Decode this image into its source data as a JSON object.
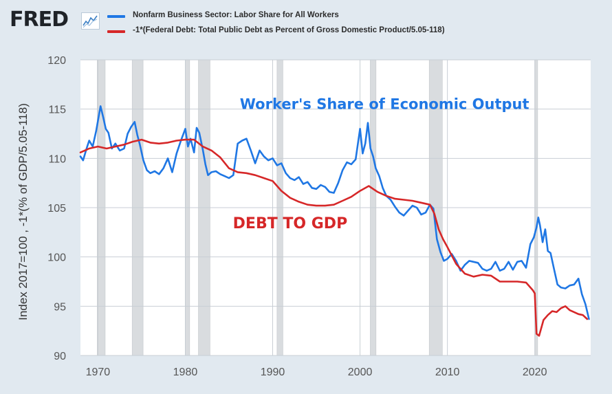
{
  "header": {
    "logo_text": "FRED",
    "logo_icon": "line-chart-icon"
  },
  "colors": {
    "background": "#e1e9f0",
    "plot_area": "#ffffff",
    "grid": "#c8ced4",
    "recession": "#d9dcdf",
    "series_blue": "#1f77e4",
    "series_red": "#d62728",
    "annotation_blue": "#1f77e4",
    "annotation_red": "#d62728"
  },
  "chart_data": {
    "type": "line",
    "ylabel": "Index 2017=100 , -1*(% of GDP/5.05-118)",
    "xlabel": "",
    "xlim": [
      1968.0,
      2026.4
    ],
    "ylim": [
      90,
      120
    ],
    "yticks": [
      90,
      95,
      100,
      105,
      110,
      115,
      120
    ],
    "xticks": [
      1970,
      1980,
      1990,
      2000,
      2010,
      2020
    ],
    "grid": true,
    "legend_position": "top-left",
    "recessions": [
      [
        1969.92,
        1970.83
      ],
      [
        1973.92,
        1975.17
      ],
      [
        1980.0,
        1980.5
      ],
      [
        1981.5,
        1982.83
      ],
      [
        1990.5,
        1991.17
      ],
      [
        2001.17,
        2001.83
      ],
      [
        2007.92,
        2009.42
      ],
      [
        2020.08,
        2020.33
      ]
    ],
    "annotations": [
      {
        "text": "Worker's Share of Economic Output",
        "x": 2002.8,
        "y": 115.0,
        "color": "blue"
      },
      {
        "text": "DEBT TO GDP",
        "x": 1992.0,
        "y": 102.9,
        "color": "red"
      }
    ],
    "series": [
      {
        "name": "Nonfarm Business Sector: Labor Share for All Workers",
        "color": "blue",
        "x": [
          1968.0,
          1968.3,
          1968.7,
          1969.0,
          1969.4,
          1969.8,
          1970.0,
          1970.3,
          1970.6,
          1970.9,
          1971.2,
          1971.6,
          1972.0,
          1972.5,
          1973.0,
          1973.4,
          1973.8,
          1974.2,
          1974.5,
          1974.8,
          1975.2,
          1975.6,
          1976.0,
          1976.5,
          1977.0,
          1977.5,
          1978.0,
          1978.5,
          1979.0,
          1979.5,
          1980.0,
          1980.3,
          1980.6,
          1981.0,
          1981.3,
          1981.6,
          1982.0,
          1982.3,
          1982.6,
          1983.0,
          1983.5,
          1984.0,
          1984.5,
          1985.0,
          1985.5,
          1986.0,
          1986.5,
          1987.0,
          1987.5,
          1988.0,
          1988.5,
          1989.0,
          1989.5,
          1990.0,
          1990.5,
          1991.0,
          1991.5,
          1992.0,
          1992.5,
          1993.0,
          1993.5,
          1994.0,
          1994.5,
          1995.0,
          1995.5,
          1996.0,
          1996.5,
          1997.0,
          1997.5,
          1998.0,
          1998.5,
          1999.0,
          1999.5,
          2000.0,
          2000.3,
          2000.6,
          2000.9,
          2001.2,
          2001.5,
          2001.8,
          2002.2,
          2002.6,
          2003.0,
          2003.5,
          2004.0,
          2004.5,
          2005.0,
          2005.5,
          2006.0,
          2006.5,
          2007.0,
          2007.5,
          2008.0,
          2008.4,
          2008.8,
          2009.2,
          2009.6,
          2010.0,
          2010.5,
          2011.0,
          2011.5,
          2012.0,
          2012.5,
          2013.0,
          2013.5,
          2014.0,
          2014.5,
          2015.0,
          2015.5,
          2016.0,
          2016.5,
          2017.0,
          2017.5,
          2018.0,
          2018.5,
          2019.0,
          2019.5,
          2019.9,
          2020.2,
          2020.4,
          2020.6,
          2020.9,
          2021.2,
          2021.5,
          2021.8,
          2022.2,
          2022.6,
          2023.0,
          2023.5,
          2024.0,
          2024.5,
          2025.0,
          2025.4,
          2025.8,
          2026.2
        ],
        "values": [
          110.2,
          109.8,
          111.0,
          111.8,
          111.2,
          112.8,
          113.8,
          115.3,
          114.2,
          113.0,
          112.6,
          111.0,
          111.5,
          110.8,
          111.0,
          112.5,
          113.2,
          113.7,
          112.4,
          111.4,
          109.8,
          108.8,
          108.5,
          108.7,
          108.4,
          109.0,
          110.0,
          108.6,
          110.5,
          111.8,
          113.0,
          111.2,
          112.0,
          110.6,
          113.1,
          112.6,
          110.9,
          109.4,
          108.3,
          108.6,
          108.7,
          108.4,
          108.2,
          108.0,
          108.3,
          111.5,
          111.8,
          112.0,
          110.8,
          109.5,
          110.8,
          110.2,
          109.8,
          110.0,
          109.3,
          109.5,
          108.5,
          108.0,
          107.8,
          108.1,
          107.4,
          107.6,
          107.0,
          106.9,
          107.3,
          107.1,
          106.6,
          106.5,
          107.5,
          108.8,
          109.6,
          109.4,
          109.9,
          113.0,
          110.5,
          111.5,
          113.6,
          111.0,
          110.2,
          109.0,
          108.2,
          107.0,
          106.2,
          105.8,
          105.1,
          104.5,
          104.2,
          104.7,
          105.2,
          105.0,
          104.3,
          104.5,
          105.3,
          104.9,
          101.8,
          100.5,
          99.6,
          99.8,
          100.3,
          99.6,
          98.6,
          99.2,
          99.6,
          99.5,
          99.4,
          98.8,
          98.6,
          98.8,
          99.5,
          98.6,
          98.8,
          99.5,
          98.7,
          99.5,
          99.6,
          98.9,
          101.3,
          102.0,
          103.0,
          104.0,
          103.2,
          101.5,
          102.8,
          100.6,
          100.4,
          98.8,
          97.2,
          96.9,
          96.8,
          97.1,
          97.2,
          97.8,
          96.2,
          95.2,
          93.7
        ]
      },
      {
        "name": "-1*(Federal Debt: Total Public Debt as Percent of Gross Domestic Product/5.05-118)",
        "color": "red",
        "x": [
          1968.0,
          1969.0,
          1970.0,
          1971.0,
          1972.0,
          1973.0,
          1974.0,
          1975.0,
          1976.0,
          1977.0,
          1978.0,
          1979.0,
          1980.0,
          1981.0,
          1982.0,
          1983.0,
          1984.0,
          1985.0,
          1986.0,
          1987.0,
          1988.0,
          1989.0,
          1990.0,
          1991.0,
          1992.0,
          1993.0,
          1994.0,
          1995.0,
          1996.0,
          1997.0,
          1998.0,
          1999.0,
          2000.0,
          2001.0,
          2002.0,
          2003.0,
          2004.0,
          2005.0,
          2006.0,
          2007.0,
          2008.0,
          2008.5,
          2009.0,
          2009.5,
          2010.0,
          2011.0,
          2012.0,
          2013.0,
          2014.0,
          2015.0,
          2016.0,
          2017.0,
          2018.0,
          2019.0,
          2019.8,
          2020.0,
          2020.2,
          2020.5,
          2021.0,
          2021.5,
          2022.0,
          2022.5,
          2023.0,
          2023.5,
          2024.0,
          2024.5,
          2025.0,
          2025.5,
          2026.0
        ],
        "values": [
          110.6,
          111.0,
          111.2,
          111.0,
          111.2,
          111.4,
          111.7,
          111.9,
          111.6,
          111.5,
          111.6,
          111.8,
          111.9,
          111.9,
          111.2,
          110.8,
          110.1,
          109.0,
          108.6,
          108.5,
          108.3,
          108.0,
          107.7,
          106.7,
          106.0,
          105.6,
          105.3,
          105.2,
          105.2,
          105.3,
          105.7,
          106.1,
          106.7,
          107.2,
          106.6,
          106.2,
          105.9,
          105.8,
          105.7,
          105.5,
          105.3,
          104.4,
          102.8,
          101.8,
          101.0,
          99.3,
          98.3,
          98.0,
          98.2,
          98.1,
          97.5,
          97.5,
          97.5,
          97.4,
          96.6,
          96.3,
          92.2,
          92.0,
          93.6,
          94.1,
          94.5,
          94.4,
          94.8,
          95.0,
          94.6,
          94.4,
          94.2,
          94.1,
          93.7
        ]
      }
    ]
  }
}
